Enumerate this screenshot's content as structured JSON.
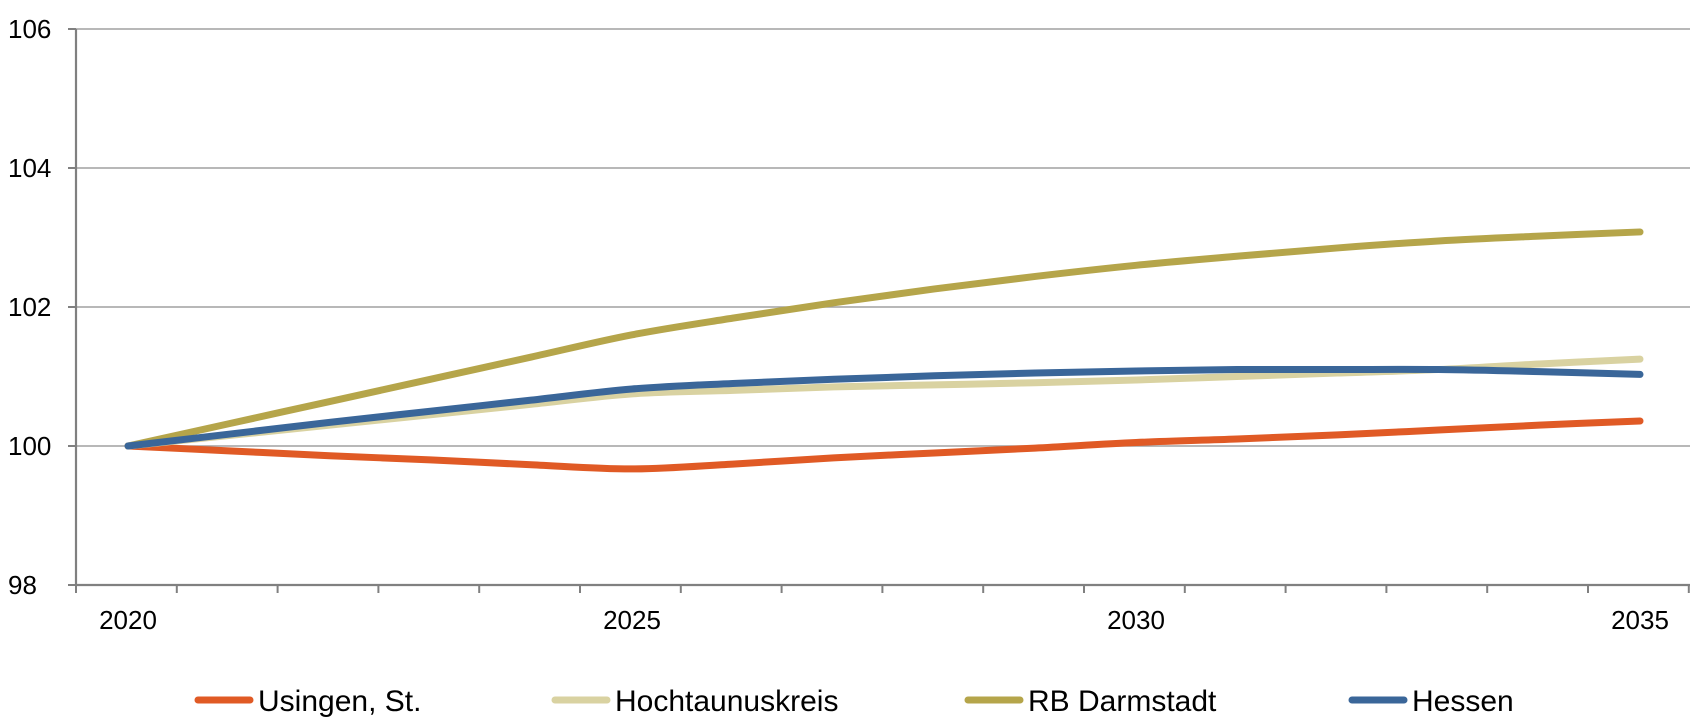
{
  "chart_data": {
    "type": "line",
    "title": "",
    "xlabel": "",
    "ylabel": "",
    "x": [
      2020,
      2025,
      2030,
      2035
    ],
    "xlim": [
      2020,
      2035
    ],
    "ylim": [
      98,
      106
    ],
    "x_ticks": [
      "2020",
      "2025",
      "2030",
      "2035"
    ],
    "y_ticks": [
      "98",
      "100",
      "102",
      "104",
      "106"
    ],
    "grid": true,
    "legend_position": "bottom",
    "series": [
      {
        "name": "Usingen, St.",
        "color": "#e05a25",
        "x": [
          2020,
          2021,
          2022,
          2023,
          2024,
          2025,
          2026,
          2027,
          2028,
          2029,
          2030,
          2031,
          2032,
          2033,
          2034,
          2035
        ],
        "values": [
          100.0,
          99.93,
          99.86,
          99.8,
          99.73,
          99.67,
          99.74,
          99.83,
          99.9,
          99.97,
          100.05,
          100.1,
          100.16,
          100.23,
          100.3,
          100.36
        ]
      },
      {
        "name": "Hochtaunuskreis",
        "color": "#d9d2a1",
        "x": [
          2020,
          2021,
          2022,
          2023,
          2024,
          2025,
          2026,
          2027,
          2028,
          2029,
          2030,
          2031,
          2032,
          2033,
          2034,
          2035
        ],
        "values": [
          100.0,
          100.15,
          100.3,
          100.45,
          100.6,
          100.75,
          100.8,
          100.85,
          100.88,
          100.91,
          100.95,
          101.0,
          101.05,
          101.1,
          101.18,
          101.25
        ]
      },
      {
        "name": "RB Darmstadt",
        "color": "#b5a54a",
        "x": [
          2020,
          2021,
          2022,
          2023,
          2024,
          2025,
          2026,
          2027,
          2028,
          2029,
          2030,
          2031,
          2032,
          2033,
          2034,
          2035
        ],
        "values": [
          100.0,
          100.32,
          100.64,
          100.96,
          101.28,
          101.6,
          101.84,
          102.06,
          102.26,
          102.44,
          102.6,
          102.73,
          102.85,
          102.95,
          103.02,
          103.08
        ]
      },
      {
        "name": "Hessen",
        "color": "#3a6699",
        "x": [
          2020,
          2021,
          2022,
          2023,
          2024,
          2025,
          2026,
          2027,
          2028,
          2029,
          2030,
          2031,
          2032,
          2033,
          2034,
          2035
        ],
        "values": [
          100.0,
          100.17,
          100.34,
          100.5,
          100.66,
          100.82,
          100.9,
          100.96,
          101.01,
          101.05,
          101.08,
          101.1,
          101.1,
          101.1,
          101.07,
          101.03
        ]
      }
    ]
  }
}
